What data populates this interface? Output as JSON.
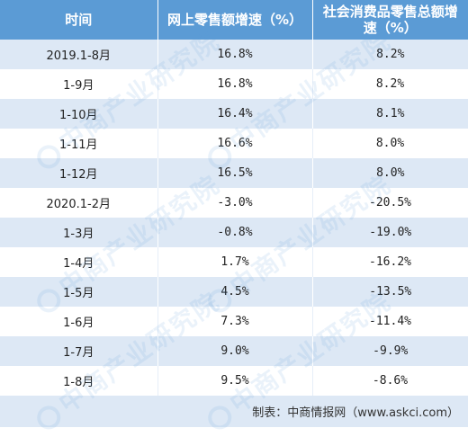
{
  "table": {
    "headers": [
      "时间",
      "网上零售额增速（%）",
      "社会消费品零售总额增速（%）"
    ],
    "rows": [
      {
        "period": "2019.1-8月",
        "online": "16.8%",
        "total": "8.2%"
      },
      {
        "period": "1-9月",
        "online": "16.8%",
        "total": "8.2%"
      },
      {
        "period": "1-10月",
        "online": "16.4%",
        "total": "8.1%"
      },
      {
        "period": "1-11月",
        "online": "16.6%",
        "total": "8.0%"
      },
      {
        "period": "1-12月",
        "online": "16.5%",
        "total": "8.0%"
      },
      {
        "period": "2020.1-2月",
        "online": "-3.0%",
        "total": "-20.5%"
      },
      {
        "period": "1-3月",
        "online": "-0.8%",
        "total": "-19.0%"
      },
      {
        "period": "1-4月",
        "online": "1.7%",
        "total": "-16.2%"
      },
      {
        "period": "1-5月",
        "online": "4.5%",
        "total": "-13.5%"
      },
      {
        "period": "1-6月",
        "online": "7.3%",
        "total": "-11.4%"
      },
      {
        "period": "1-7月",
        "online": "9.0%",
        "total": "-9.9%"
      },
      {
        "period": "1-8月",
        "online": "9.5%",
        "total": "-8.6%"
      }
    ]
  },
  "source": "制表：中商情报网（www.askci.com）",
  "watermark": "中商产业研究院",
  "colors": {
    "header_bg": "#5b9bd5",
    "row_alt_bg": "#dde8f5",
    "row_bg": "#ffffff"
  }
}
